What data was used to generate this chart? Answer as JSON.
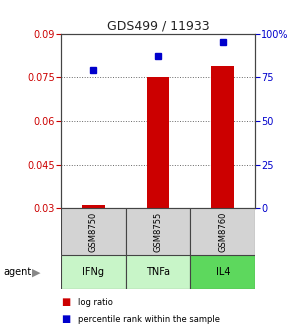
{
  "title": "GDS499 / 11933",
  "samples": [
    "GSM8750",
    "GSM8755",
    "GSM8760"
  ],
  "agents": [
    "IFNg",
    "TNFa",
    "IL4"
  ],
  "log_ratio": [
    0.031,
    0.075,
    0.079
  ],
  "percentile_pct": [
    79,
    87,
    95
  ],
  "ylim_left": [
    0.03,
    0.09
  ],
  "ylim_right": [
    0,
    100
  ],
  "yticks_left": [
    0.03,
    0.045,
    0.06,
    0.075,
    0.09
  ],
  "yticks_right": [
    0,
    25,
    50,
    75,
    100
  ],
  "ytick_labels_left": [
    "0.03",
    "0.045",
    "0.06",
    "0.075",
    "0.09"
  ],
  "ytick_labels_right": [
    "0",
    "25",
    "50",
    "75",
    "100%"
  ],
  "bar_color": "#cc0000",
  "point_color": "#0000cc",
  "sample_box_color": "#d3d3d3",
  "agent_box_color_light": "#c8f5c8",
  "agent_box_color_medium": "#90ee90",
  "agent_colors": [
    "#c8f5c8",
    "#c8f5c8",
    "#5dd85d"
  ],
  "title_color": "#222222",
  "left_axis_color": "#cc0000",
  "right_axis_color": "#0000cc",
  "grid_color": "#666666"
}
